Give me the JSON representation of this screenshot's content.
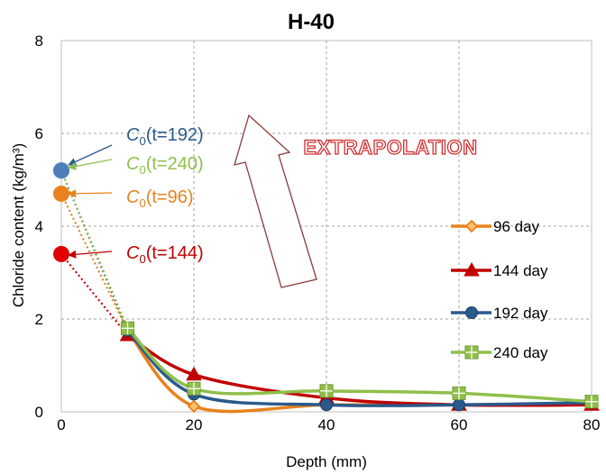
{
  "chart_data": {
    "type": "line",
    "title": "H-40",
    "xlabel": "Depth (mm)",
    "ylabel": "Chloride content (kg/m³)",
    "xlim": [
      0,
      80
    ],
    "ylim": [
      0,
      8
    ],
    "xticks": [
      "0",
      "20",
      "40",
      "60",
      "80"
    ],
    "yticks": [
      "0",
      "2",
      "4",
      "6",
      "8"
    ],
    "grid": true,
    "legend_position": "right",
    "series": [
      {
        "name": "96 day",
        "color": "#e8821e",
        "marker": "diamond",
        "x": [
          10,
          20,
          40,
          60,
          80
        ],
        "y": [
          1.75,
          0.12,
          0.15,
          0.15,
          0.18
        ],
        "c0": 4.7,
        "c0_label": "(t=96)"
      },
      {
        "name": "144 day",
        "color": "#c00000",
        "marker": "triangle",
        "x": [
          10,
          20,
          40,
          60,
          80
        ],
        "y": [
          1.65,
          0.8,
          0.3,
          0.15,
          0.15
        ],
        "c0": 3.4,
        "c0_label": "(t=144)"
      },
      {
        "name": "192 day",
        "color": "#2a5a8c",
        "marker": "circle",
        "x": [
          10,
          20,
          40,
          60,
          80
        ],
        "y": [
          1.75,
          0.38,
          0.15,
          0.15,
          0.2
        ],
        "c0": 5.2,
        "c0_label": "(t=192)"
      },
      {
        "name": "240 day",
        "color": "#8fbf4a",
        "marker": "square-plus",
        "x": [
          10,
          20,
          40,
          60,
          80
        ],
        "y": [
          1.8,
          0.5,
          0.45,
          0.4,
          0.22
        ],
        "c0": 5.2,
        "c0_label": "(t=240)"
      }
    ],
    "annotations": {
      "c0_symbol": "C",
      "c0_subscript": "0",
      "extrapolation_label": "EXTRAPOLATION"
    }
  }
}
